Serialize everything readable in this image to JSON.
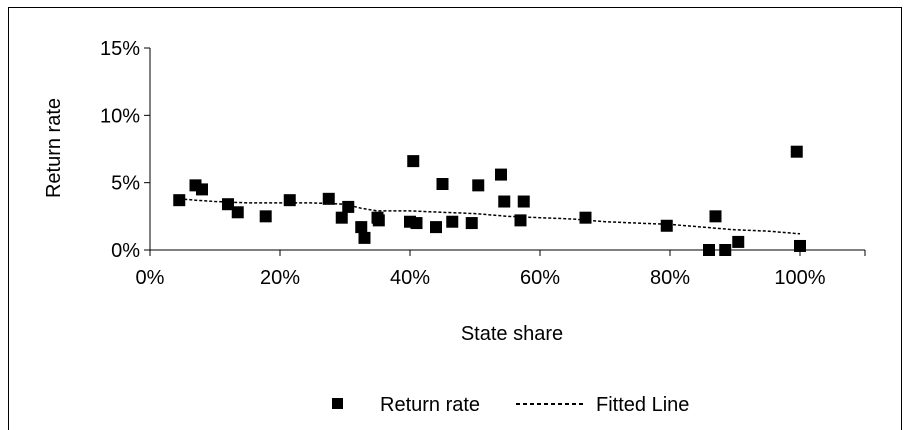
{
  "chart_data": {
    "type": "scatter",
    "title": "",
    "xlabel": "State share",
    "ylabel": "Return rate",
    "xlim": [
      0,
      1.1
    ],
    "ylim": [
      0,
      0.15
    ],
    "x_ticks": [
      "0%",
      "20%",
      "40%",
      "60%",
      "80%",
      "100%"
    ],
    "x_tick_values": [
      0,
      0.2,
      0.4,
      0.6,
      0.8,
      1.0
    ],
    "y_ticks": [
      "0%",
      "5%",
      "10%",
      "15%"
    ],
    "y_tick_values": [
      0,
      0.05,
      0.1,
      0.15
    ],
    "grid": false,
    "legend_position": "bottom",
    "series": [
      {
        "name": "Return rate",
        "kind": "scatter",
        "marker": "square",
        "color": "#000000",
        "points": [
          [
            0.045,
            0.037
          ],
          [
            0.07,
            0.048
          ],
          [
            0.08,
            0.045
          ],
          [
            0.12,
            0.034
          ],
          [
            0.135,
            0.028
          ],
          [
            0.178,
            0.025
          ],
          [
            0.215,
            0.037
          ],
          [
            0.275,
            0.038
          ],
          [
            0.295,
            0.024
          ],
          [
            0.305,
            0.032
          ],
          [
            0.325,
            0.017
          ],
          [
            0.33,
            0.009
          ],
          [
            0.35,
            0.024
          ],
          [
            0.352,
            0.022
          ],
          [
            0.4,
            0.021
          ],
          [
            0.405,
            0.066
          ],
          [
            0.41,
            0.02
          ],
          [
            0.44,
            0.017
          ],
          [
            0.45,
            0.049
          ],
          [
            0.465,
            0.021
          ],
          [
            0.495,
            0.02
          ],
          [
            0.505,
            0.048
          ],
          [
            0.54,
            0.056
          ],
          [
            0.545,
            0.036
          ],
          [
            0.57,
            0.022
          ],
          [
            0.575,
            0.036
          ],
          [
            0.67,
            0.024
          ],
          [
            0.795,
            0.018
          ],
          [
            0.86,
            0.0
          ],
          [
            0.87,
            0.025
          ],
          [
            0.885,
            0.0
          ],
          [
            0.905,
            0.006
          ],
          [
            0.995,
            0.073
          ],
          [
            1.0,
            0.003
          ]
        ]
      },
      {
        "name": "Fitted Line",
        "kind": "line",
        "style": "dashed",
        "color": "#000000",
        "points": [
          [
            0.045,
            0.038
          ],
          [
            0.07,
            0.037
          ],
          [
            0.1,
            0.036
          ],
          [
            0.15,
            0.035
          ],
          [
            0.2,
            0.035
          ],
          [
            0.25,
            0.035
          ],
          [
            0.3,
            0.034
          ],
          [
            0.325,
            0.031
          ],
          [
            0.35,
            0.029
          ],
          [
            0.4,
            0.029
          ],
          [
            0.45,
            0.028
          ],
          [
            0.5,
            0.027
          ],
          [
            0.55,
            0.025
          ],
          [
            0.6,
            0.024
          ],
          [
            0.65,
            0.023
          ],
          [
            0.7,
            0.021
          ],
          [
            0.75,
            0.02
          ],
          [
            0.8,
            0.019
          ],
          [
            0.85,
            0.017
          ],
          [
            0.9,
            0.015
          ],
          [
            0.95,
            0.014
          ],
          [
            1.0,
            0.012
          ]
        ]
      }
    ]
  }
}
